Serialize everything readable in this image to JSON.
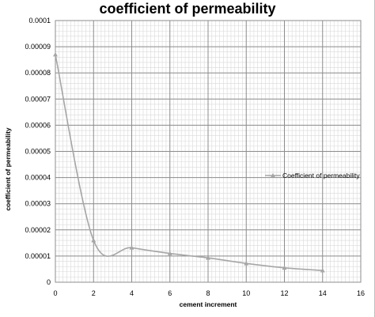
{
  "chart_data": {
    "type": "line",
    "title": "coefficient of permeability",
    "xlabel": "cement increment",
    "ylabel": "coefficient of permeability",
    "xlim": [
      0,
      16
    ],
    "ylim": [
      0,
      0.0001
    ],
    "x_ticks": [
      "0",
      "2",
      "4",
      "6",
      "8",
      "10",
      "12",
      "14",
      "16"
    ],
    "y_ticks": [
      "0",
      "0.00001",
      "0.00002",
      "0.00003",
      "0.00004",
      "0.00005",
      "0.00006",
      "0.00007",
      "0.00008",
      "0.00009",
      "0.0001"
    ],
    "grid": true,
    "smoothed": true,
    "legend_position": "right",
    "series": [
      {
        "name": "Coefficient of permeability",
        "color": "#a6a6a6",
        "marker": "triangle",
        "x": [
          0,
          2,
          4,
          6,
          8,
          10,
          12,
          14
        ],
        "y": [
          8.7e-05,
          1.6e-05,
          1.32e-05,
          1.1e-05,
          9.3e-06,
          7.2e-06,
          5.5e-06,
          4.5e-06
        ]
      }
    ]
  }
}
